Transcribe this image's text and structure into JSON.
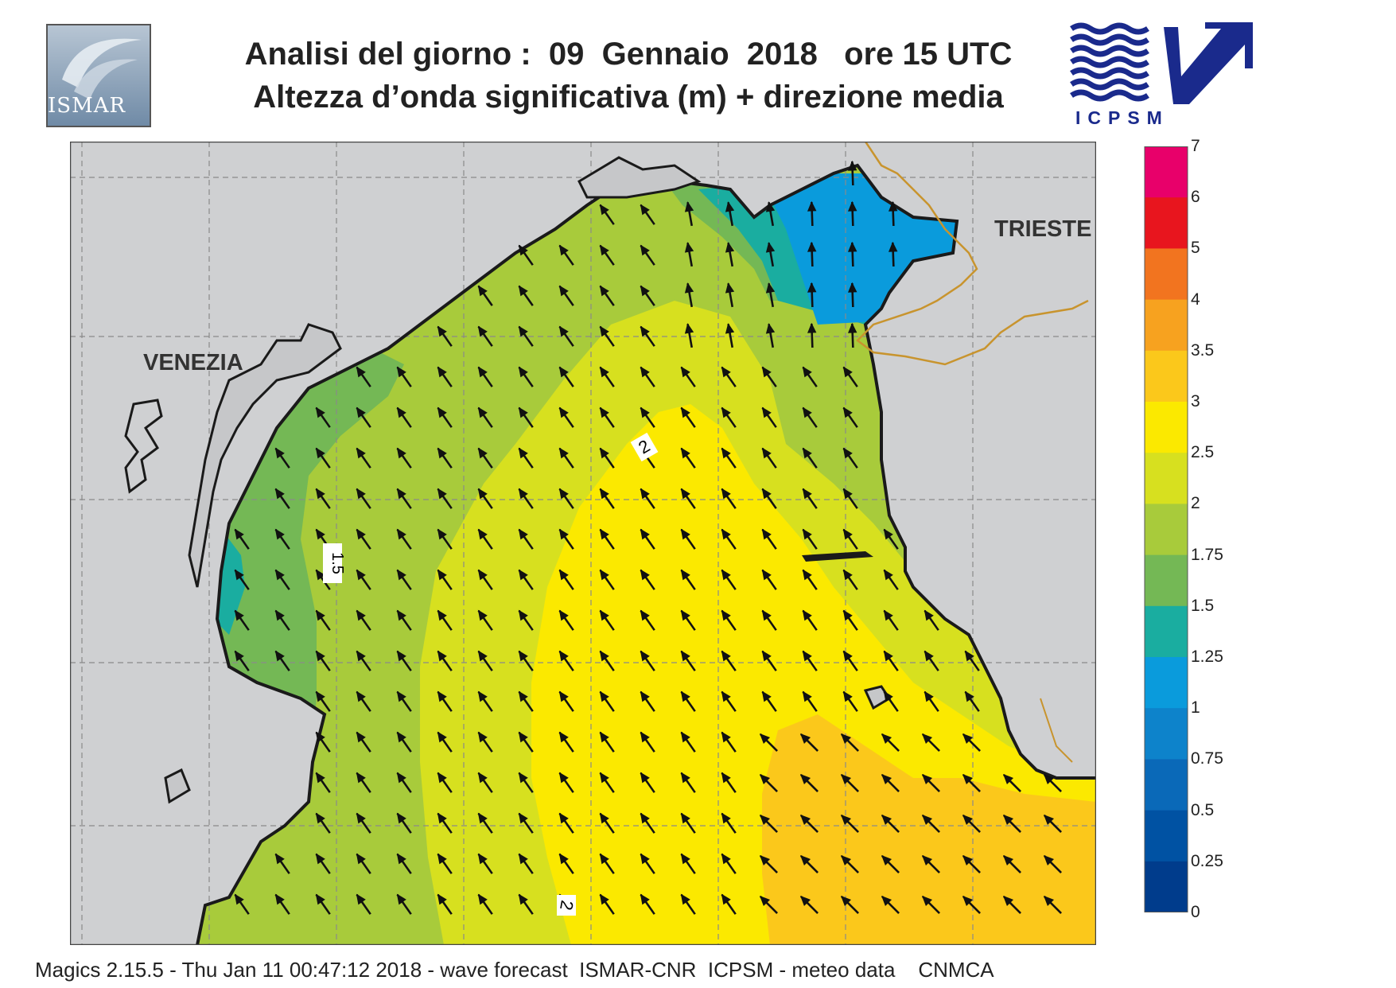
{
  "header": {
    "title_line1": "Analisi del giorno :  09  Gennaio  2018   ore 15 UTC",
    "title_line2": "Altezza d’onda significativa (m) + direzione media"
  },
  "logos": {
    "left": "ISMAR",
    "right": "ICPSM"
  },
  "map": {
    "cities": [
      {
        "name": "VENEZIA"
      },
      {
        "name": "TRIESTE"
      }
    ],
    "contour_labels": [
      "1.5",
      "2",
      "2"
    ],
    "arrow_direction": "north-west",
    "land_color": "#cfd0d2",
    "coast_color": "#1a1a1a",
    "border_color": "#c8942e"
  },
  "colorbar": {
    "levels": [
      "7",
      "6",
      "5",
      "4",
      "3.5",
      "3",
      "2.5",
      "2",
      "1.75",
      "1.5",
      "1.25",
      "1",
      "0.75",
      "0.5",
      "0.25",
      "0"
    ],
    "colors": [
      "#e8006a",
      "#e8151e",
      "#f2741f",
      "#f7a21f",
      "#fbc81b",
      "#fbe900",
      "#d7e01f",
      "#a8cb3b",
      "#74b855",
      "#1aada0",
      "#0a9bdc",
      "#0d83cb",
      "#0a69b8",
      "#0052a3",
      "#003c8c"
    ]
  },
  "footer": {
    "text": "Magics 2.15.5 - Thu Jan 11 00:47:12 2018 - wave forecast  ISMAR-CNR  ICPSM - meteo data    CNMCA"
  }
}
